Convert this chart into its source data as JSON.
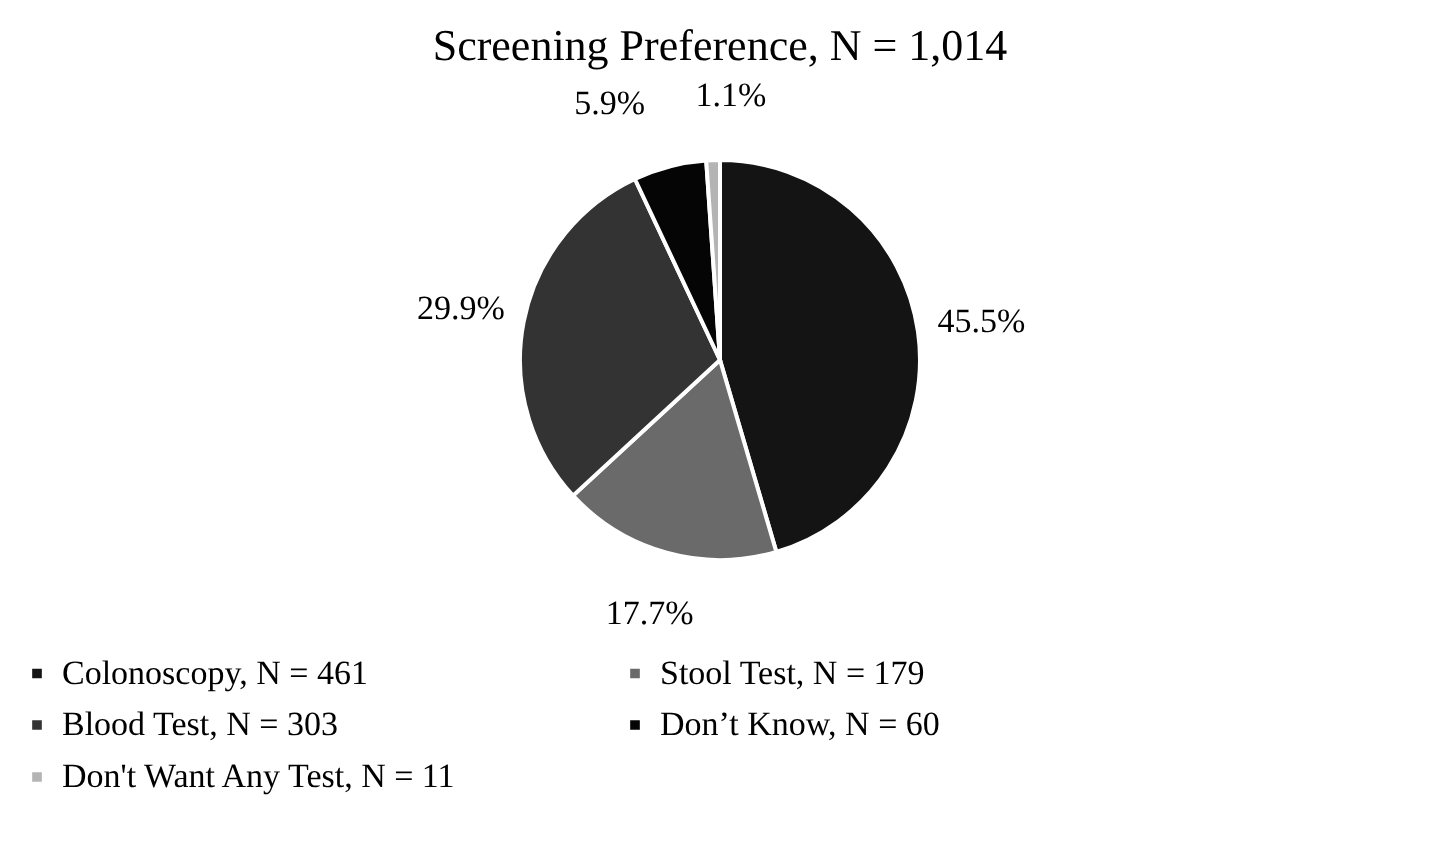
{
  "chart_data": {
    "type": "pie",
    "title": "Screening Preference, N = 1,014",
    "categories": [
      "Colonoscopy, N = 461",
      "Stool Test, N = 179",
      "Blood Test, N = 303",
      "Don’t Know, N = 60",
      "Don't Want Any Test, N = 11"
    ],
    "values": [
      45.5,
      17.7,
      29.9,
      5.9,
      1.1
    ],
    "value_labels": [
      "45.5%",
      "17.7%",
      "29.9%",
      "5.9%",
      "1.1%"
    ],
    "colors": [
      "#141414",
      "#6a6a6a",
      "#333333",
      "#050505",
      "#b4b4b4"
    ],
    "legend": "bottom"
  }
}
